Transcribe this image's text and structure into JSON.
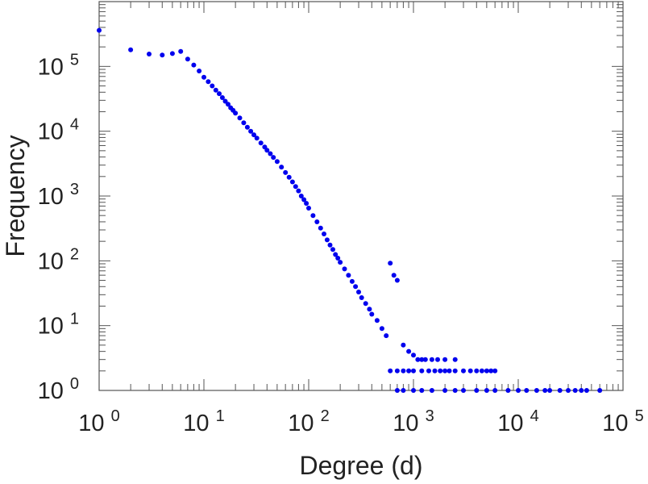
{
  "chart_data": {
    "type": "scatter",
    "title": "",
    "xlabel": "Degree (d)",
    "ylabel": "Frequency",
    "x_scale": "log",
    "y_scale": "log",
    "xlim": [
      1,
      100000
    ],
    "ylim": [
      1,
      1000000
    ],
    "x_ticks": [
      {
        "base": "10",
        "exp": "0"
      },
      {
        "base": "10",
        "exp": "1"
      },
      {
        "base": "10",
        "exp": "2"
      },
      {
        "base": "10",
        "exp": "3"
      },
      {
        "base": "10",
        "exp": "4"
      },
      {
        "base": "10",
        "exp": "5"
      }
    ],
    "y_ticks": [
      {
        "base": "10",
        "exp": "0"
      },
      {
        "base": "10",
        "exp": "1"
      },
      {
        "base": "10",
        "exp": "2"
      },
      {
        "base": "10",
        "exp": "3"
      },
      {
        "base": "10",
        "exp": "4"
      },
      {
        "base": "10",
        "exp": "5"
      }
    ],
    "grid": false,
    "marker_color": "#0000ee",
    "series": [
      {
        "points": [
          [
            1,
            360000
          ],
          [
            2,
            180000
          ],
          [
            3,
            155000
          ],
          [
            4,
            150000
          ],
          [
            5,
            158000
          ],
          [
            6,
            170000
          ],
          [
            7,
            130000
          ],
          [
            8,
            105000
          ],
          [
            9,
            85000
          ],
          [
            10,
            68000
          ],
          [
            11,
            58000
          ],
          [
            12,
            50000
          ],
          [
            13,
            43000
          ],
          [
            14,
            38000
          ],
          [
            15,
            33000
          ],
          [
            16,
            29000
          ],
          [
            17,
            26000
          ],
          [
            18,
            23000
          ],
          [
            19,
            21000
          ],
          [
            20,
            19000
          ],
          [
            22,
            16000
          ],
          [
            24,
            13500
          ],
          [
            26,
            11500
          ],
          [
            28,
            10000
          ],
          [
            30,
            8800
          ],
          [
            32,
            7800
          ],
          [
            35,
            6600
          ],
          [
            38,
            5700
          ],
          [
            40,
            5100
          ],
          [
            43,
            4500
          ],
          [
            46,
            3950
          ],
          [
            50,
            3400
          ],
          [
            55,
            2800
          ],
          [
            60,
            2300
          ],
          [
            65,
            1950
          ],
          [
            70,
            1650
          ],
          [
            75,
            1400
          ],
          [
            80,
            1200
          ],
          [
            85,
            1000
          ],
          [
            90,
            880
          ],
          [
            95,
            770
          ],
          [
            100,
            650
          ],
          [
            110,
            500
          ],
          [
            120,
            400
          ],
          [
            130,
            320
          ],
          [
            140,
            260
          ],
          [
            150,
            210
          ],
          [
            160,
            175
          ],
          [
            170,
            150
          ],
          [
            180,
            125
          ],
          [
            190,
            110
          ],
          [
            200,
            95
          ],
          [
            220,
            75
          ],
          [
            240,
            60
          ],
          [
            260,
            48
          ],
          [
            280,
            40
          ],
          [
            300,
            33
          ],
          [
            320,
            27
          ],
          [
            350,
            22
          ],
          [
            380,
            18
          ],
          [
            400,
            15
          ],
          [
            450,
            12
          ],
          [
            500,
            9
          ],
          [
            550,
            7
          ],
          [
            600,
            92
          ],
          [
            650,
            60
          ],
          [
            700,
            50
          ],
          [
            800,
            5
          ],
          [
            900,
            4
          ],
          [
            1000,
            3.5
          ],
          [
            1100,
            3
          ],
          [
            1200,
            3
          ],
          [
            1300,
            3
          ],
          [
            1500,
            3
          ],
          [
            1700,
            3
          ],
          [
            2000,
            3
          ],
          [
            2500,
            3
          ],
          [
            600,
            2
          ],
          [
            700,
            2
          ],
          [
            800,
            2
          ],
          [
            900,
            2
          ],
          [
            1000,
            2
          ],
          [
            1200,
            2
          ],
          [
            1400,
            2
          ],
          [
            1600,
            2
          ],
          [
            1800,
            2
          ],
          [
            2000,
            2
          ],
          [
            2200,
            2
          ],
          [
            2500,
            2
          ],
          [
            3000,
            2
          ],
          [
            3500,
            2
          ],
          [
            4000,
            2
          ],
          [
            4500,
            2
          ],
          [
            5000,
            2
          ],
          [
            5500,
            2
          ],
          [
            6000,
            2
          ],
          [
            700,
            1
          ],
          [
            800,
            1
          ],
          [
            1000,
            1
          ],
          [
            1200,
            1
          ],
          [
            1500,
            1
          ],
          [
            2000,
            1
          ],
          [
            2500,
            1
          ],
          [
            3000,
            1
          ],
          [
            4000,
            1
          ],
          [
            5000,
            1
          ],
          [
            6000,
            1
          ],
          [
            8000,
            1
          ],
          [
            10000,
            1
          ],
          [
            12000,
            1
          ],
          [
            15000,
            1
          ],
          [
            18000,
            1
          ],
          [
            20000,
            1
          ],
          [
            25000,
            1
          ],
          [
            30000,
            1
          ],
          [
            35000,
            1
          ],
          [
            40000,
            1
          ],
          [
            45000,
            1
          ],
          [
            60000,
            1
          ]
        ]
      }
    ]
  }
}
